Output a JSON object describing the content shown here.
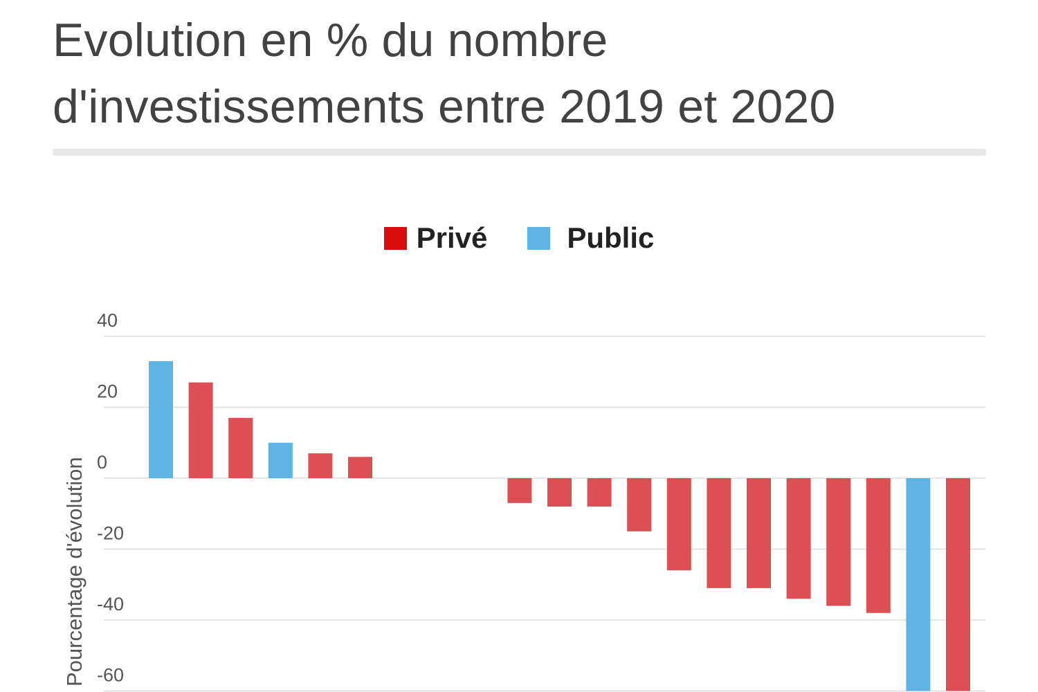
{
  "colors": {
    "prive": "#db4f55",
    "public": "#5db4e3",
    "prive_legend": "#d90d0d",
    "public_legend": "#5db4e3",
    "gridline": "#dddddd",
    "title_text": "#424242"
  },
  "chart_data": {
    "type": "bar",
    "title": "Evolution en % du nombre d'investissements entre 2019 et 2020",
    "ylabel": "Pourcentage d'évolution",
    "xlabel": "",
    "ylim": [
      -60,
      40
    ],
    "yticks": [
      40,
      20,
      0,
      -20,
      -40,
      -60
    ],
    "grid": true,
    "legend_position": "top-center",
    "legend": [
      {
        "name": "Privé",
        "color_key": "prive_legend"
      },
      {
        "name": "Public",
        "color_key": "public_legend"
      }
    ],
    "categories": [
      "",
      "",
      "",
      "",
      "",
      "",
      "",
      "",
      "",
      "",
      "",
      "",
      "",
      "",
      "",
      "",
      "",
      "",
      "",
      "",
      "",
      ""
    ],
    "values": [
      33,
      27,
      17,
      10,
      7,
      6,
      0,
      0,
      0,
      -7,
      -8,
      -8,
      -15,
      -26,
      -31,
      -31,
      -34,
      -36,
      -38,
      -60,
      -60,
      0
    ],
    "series_kind": [
      "public",
      "prive",
      "prive",
      "public",
      "prive",
      "prive",
      "",
      "",
      "",
      "prive",
      "prive",
      "prive",
      "prive",
      "prive",
      "prive",
      "prive",
      "prive",
      "prive",
      "prive",
      "public",
      "prive",
      ""
    ]
  }
}
